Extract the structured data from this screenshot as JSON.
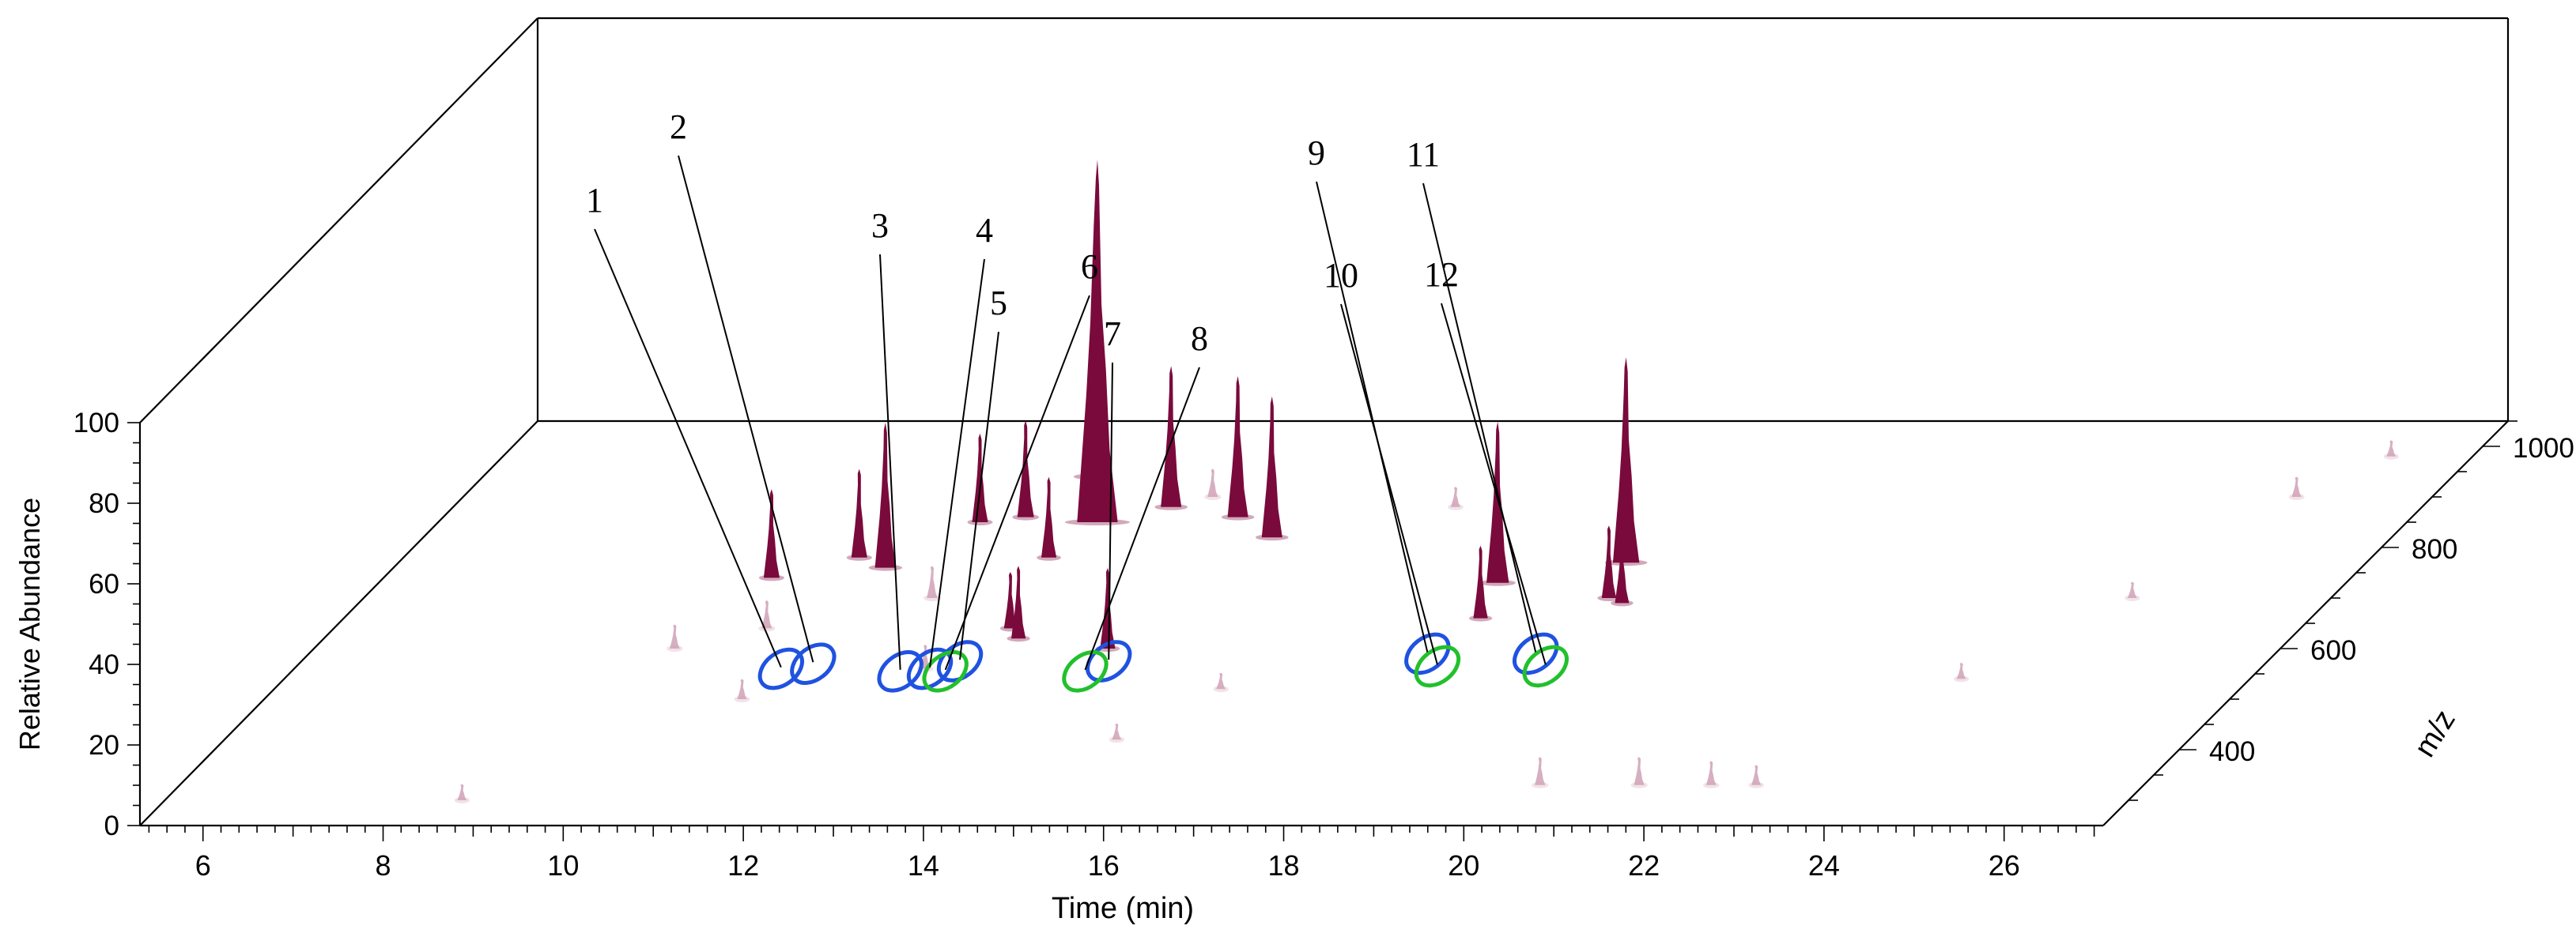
{
  "chart_data": {
    "type": "3d-waterfall",
    "title": "",
    "xlabel": "Time (min)",
    "ylabel": "Relative Abundance",
    "zlabel": "m/z",
    "xlim": [
      5.3,
      27.1
    ],
    "ylim": [
      0,
      100
    ],
    "zlim": [
      250,
      1050
    ],
    "x_ticks": [
      "6",
      "8",
      "10",
      "12",
      "14",
      "16",
      "18",
      "20",
      "22",
      "24",
      "26"
    ],
    "y_ticks": [
      "0",
      "20",
      "40",
      "60",
      "80",
      "100"
    ],
    "z_ticks": [
      "400",
      "600",
      "800",
      "1000"
    ],
    "colors": {
      "peak": "#7a0a3c",
      "minor_peak": "#d2a6ba",
      "axis": "#000000",
      "ring_blue": "#1f52e0",
      "ring_green": "#22c02c"
    },
    "peaks": [
      {
        "t": 9.6,
        "mz": 740,
        "abundance": 22
      },
      {
        "t": 10.35,
        "mz": 780,
        "abundance": 22
      },
      {
        "t": 10.75,
        "mz": 760,
        "abundance": 36
      },
      {
        "t": 11.3,
        "mz": 850,
        "abundance": 22
      },
      {
        "t": 11.75,
        "mz": 860,
        "abundance": 24
      },
      {
        "t": 12.05,
        "mz": 940,
        "abundance": 44
      },
      {
        "t": 12.45,
        "mz": 780,
        "abundance": 20
      },
      {
        "t": 12.6,
        "mz": 850,
        "abundance": 90
      },
      {
        "t": 13.0,
        "mz": 620,
        "abundance": 18
      },
      {
        "t": 12.8,
        "mz": 640,
        "abundance": 14
      },
      {
        "t": 13.25,
        "mz": 880,
        "abundance": 35
      },
      {
        "t": 14.1,
        "mz": 600,
        "abundance": 20
      },
      {
        "t": 14.1,
        "mz": 860,
        "abundance": 35
      },
      {
        "t": 14.7,
        "mz": 820,
        "abundance": 35
      },
      {
        "t": 17.7,
        "mz": 730,
        "abundance": 40
      },
      {
        "t": 17.9,
        "mz": 660,
        "abundance": 18
      },
      {
        "t": 18.9,
        "mz": 770,
        "abundance": 51
      },
      {
        "t": 19.1,
        "mz": 700,
        "abundance": 18
      },
      {
        "t": 19.3,
        "mz": 690,
        "abundance": 17
      }
    ],
    "minor_peaks": [
      {
        "t": 9.3,
        "mz": 600,
        "abundance": 6
      },
      {
        "t": 10.1,
        "mz": 640,
        "abundance": 7
      },
      {
        "t": 10.6,
        "mz": 500,
        "abundance": 5
      },
      {
        "t": 11.6,
        "mz": 700,
        "abundance": 8
      },
      {
        "t": 12.3,
        "mz": 560,
        "abundance": 6
      },
      {
        "t": 13.6,
        "mz": 900,
        "abundance": 7
      },
      {
        "t": 15.8,
        "mz": 520,
        "abundance": 4
      },
      {
        "t": 16.4,
        "mz": 880,
        "abundance": 5
      },
      {
        "t": 20.4,
        "mz": 330,
        "abundance": 7
      },
      {
        "t": 21.5,
        "mz": 330,
        "abundance": 7
      },
      {
        "t": 22.3,
        "mz": 330,
        "abundance": 6
      },
      {
        "t": 22.8,
        "mz": 330,
        "abundance": 5
      },
      {
        "t": 23.9,
        "mz": 540,
        "abundance": 4
      },
      {
        "t": 24.9,
        "mz": 700,
        "abundance": 4
      },
      {
        "t": 25.6,
        "mz": 900,
        "abundance": 5
      },
      {
        "t": 26.2,
        "mz": 980,
        "abundance": 4
      },
      {
        "t": 8.6,
        "mz": 300,
        "abundance": 4
      },
      {
        "t": 15.2,
        "mz": 420,
        "abundance": 4
      }
    ],
    "annotations": [
      {
        "label": "1",
        "ring": "blue",
        "t": 10.7,
        "mz": 560
      },
      {
        "label": "2",
        "ring": "blue",
        "t": 11.0,
        "mz": 570
      },
      {
        "label": "3",
        "ring": "blue",
        "t": 12.05,
        "mz": 555
      },
      {
        "label": "4",
        "ring": "blue",
        "t": 12.35,
        "mz": 560
      },
      {
        "label": "5",
        "ring": "blue",
        "t": 12.6,
        "mz": 575
      },
      {
        "label": "6",
        "ring": "green",
        "t": 12.55,
        "mz": 555
      },
      {
        "label": "7",
        "ring": "blue",
        "t": 14.25,
        "mz": 575
      },
      {
        "label": "8",
        "ring": "green",
        "t": 14.1,
        "mz": 555
      },
      {
        "label": "9",
        "ring": "blue",
        "t": 17.7,
        "mz": 590
      },
      {
        "label": "10",
        "ring": "green",
        "t": 17.95,
        "mz": 565
      },
      {
        "label": "11",
        "ring": "blue",
        "t": 18.9,
        "mz": 590
      },
      {
        "label": "12",
        "ring": "green",
        "t": 19.15,
        "mz": 565
      }
    ]
  }
}
